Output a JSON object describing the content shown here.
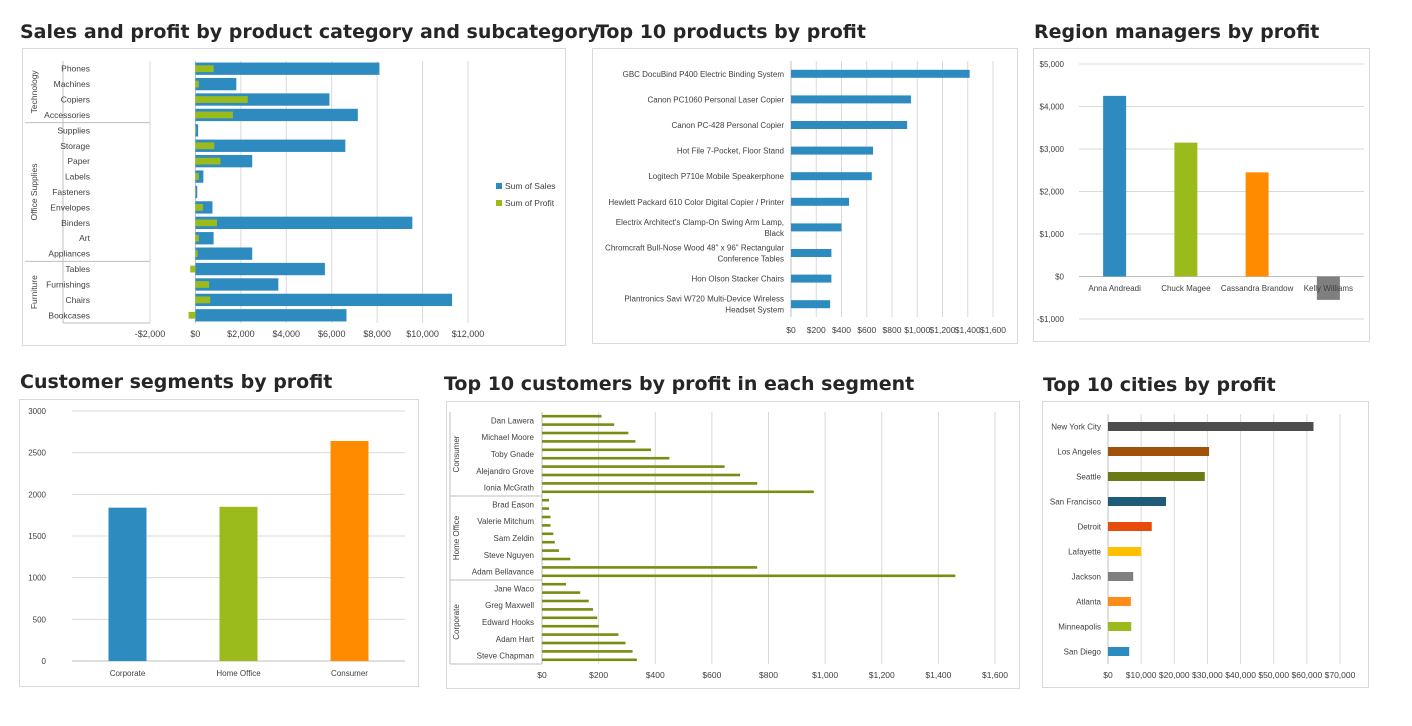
{
  "titles": {
    "sales_profit": "Sales and profit by product category and subcategory",
    "top_products": "Top 10 products by profit",
    "region_managers": "Region managers by profit",
    "segments": "Customer segments by profit",
    "top_customers": "Top 10 customers by profit in each segment",
    "top_cities": "Top 10 cities by profit"
  },
  "chart_data": [
    {
      "id": "sales_profit",
      "type": "bar",
      "orientation": "horizontal",
      "title": "Sales and profit by product category and subcategory",
      "groups": [
        {
          "name": "Technology",
          "categories": [
            "Phones",
            "Machines",
            "Copiers",
            "Accessories"
          ]
        },
        {
          "name": "Office Supplies",
          "categories": [
            "Supplies",
            "Storage",
            "Paper",
            "Labels",
            "Fasteners",
            "Envelopes",
            "Binders",
            "Art",
            "Appliances"
          ]
        },
        {
          "name": "Furniture",
          "categories": [
            "Tables",
            "Furnishings",
            "Chairs",
            "Bookcases"
          ]
        }
      ],
      "series": [
        {
          "name": "Sum of Sales",
          "color": "#2e8bc0",
          "values": [
            8100,
            1800,
            5900,
            7150,
            120,
            6600,
            2500,
            350,
            80,
            750,
            9550,
            800,
            2500,
            5700,
            3650,
            11300,
            6650
          ]
        },
        {
          "name": "Sum of Profit",
          "color": "#9bbb1d",
          "values": [
            800,
            150,
            2300,
            1650,
            30,
            830,
            1100,
            150,
            20,
            330,
            950,
            150,
            100,
            -230,
            600,
            650,
            -300
          ]
        }
      ],
      "ticks": [
        "-$2,000",
        "$0",
        "$2,000",
        "$4,000",
        "$6,000",
        "$8,000",
        "$10,000",
        "$12,000"
      ],
      "xlim": [
        -2000,
        12000
      ],
      "legend": "right",
      "grid": true
    },
    {
      "id": "top_products",
      "type": "bar",
      "orientation": "horizontal",
      "title": "Top 10 products by profit",
      "color": "#2e8bc0",
      "categories": [
        [
          "GBC DocuBind P400 Electric Binding System"
        ],
        [
          "Canon PC1060 Personal Laser Copier"
        ],
        [
          "Canon PC-428 Personal Copier"
        ],
        [
          "Hot File 7-Pocket, Floor Stand"
        ],
        [
          "Logitech P710e Mobile Speakerphone"
        ],
        [
          "Hewlett Packard 610 Color Digital Copier / Printer"
        ],
        [
          "Electrix Architect's Clamp-On Swing Arm Lamp,",
          "Black"
        ],
        [
          "Chromcraft Bull-Nose Wood 48\" x 96\" Rectangular",
          "Conference Tables"
        ],
        [
          "Hon Olson Stacker Chairs"
        ],
        [
          "Plantronics Savi W720 Multi-Device Wireless",
          "Headset System"
        ]
      ],
      "values": [
        1415,
        950,
        920,
        650,
        640,
        460,
        400,
        320,
        320,
        310
      ],
      "ticks": [
        "$0",
        "$200",
        "$400",
        "$600",
        "$800",
        "$1,000",
        "$1,200",
        "$1,400",
        "$1,600"
      ],
      "xlim": [
        0,
        1600
      ],
      "grid": true
    },
    {
      "id": "region_managers",
      "type": "bar",
      "title": "Region managers by profit",
      "categories": [
        "Anna Andreadi",
        "Chuck Magee",
        "Cassandra Brandow",
        "Kelly Williams"
      ],
      "values": [
        4250,
        3150,
        2450,
        -550
      ],
      "colors": [
        "#2e8bc0",
        "#9bbb1d",
        "#ff8c00",
        "#7f7f7f"
      ],
      "ticks": [
        "$5,000",
        "$4,000",
        "$3,000",
        "$2,000",
        "$1,000",
        "$0",
        "-$1,000"
      ],
      "ylim": [
        -1000,
        5000
      ],
      "grid": true
    },
    {
      "id": "segments",
      "type": "bar",
      "title": "Customer segments by profit",
      "categories": [
        "Corporate",
        "Home Office",
        "Consumer"
      ],
      "values": [
        1840,
        1850,
        2640
      ],
      "colors": [
        "#2e8bc0",
        "#9bbb1d",
        "#ff8c00"
      ],
      "ticks": [
        "3000",
        "2500",
        "2000",
        "1500",
        "1000",
        "500",
        "0"
      ],
      "ylim": [
        0,
        3000
      ],
      "grid": true
    },
    {
      "id": "top_customers",
      "type": "bar",
      "orientation": "horizontal",
      "title": "Top 10 customers by profit in each segment",
      "color": "#7a8c12",
      "groups": [
        {
          "name": "Consumer",
          "labels": [
            "Dan Lawera",
            "Michael Moore",
            "Toby Gnade",
            "Alejandro Grove",
            "Ionia McGrath"
          ],
          "values": [
            210,
            255,
            305,
            330,
            385,
            450,
            645,
            700,
            760,
            960
          ]
        },
        {
          "name": "Home Office",
          "labels": [
            "Brad Eason",
            "Valerie Mitchum",
            "Sam Zeldin",
            "Steve Nguyen",
            "Adam Bellavance"
          ],
          "values": [
            25,
            25,
            30,
            30,
            40,
            45,
            60,
            100,
            760,
            1460
          ]
        },
        {
          "name": "Corporate",
          "labels": [
            "Jane Waco",
            "Greg Maxwell",
            "Edward Hooks",
            "Adam Hart",
            "Steve Chapman"
          ],
          "values": [
            85,
            135,
            165,
            180,
            195,
            200,
            270,
            295,
            320,
            335
          ]
        }
      ],
      "ticks": [
        "$0",
        "$200",
        "$400",
        "$600",
        "$800",
        "$1,000",
        "$1,200",
        "$1,400",
        "$1,600"
      ],
      "xlim": [
        0,
        1600
      ],
      "grid": true
    },
    {
      "id": "top_cities",
      "type": "bar",
      "orientation": "horizontal",
      "title": "Top 10 cities by profit",
      "categories": [
        "New York City",
        "Los Angeles",
        "Seattle",
        "San Francisco",
        "Detroit",
        "Lafayette",
        "Jackson",
        "Atlanta",
        "Minneapolis",
        "San Diego"
      ],
      "values": [
        62000,
        30500,
        29200,
        17500,
        13200,
        10000,
        7600,
        6900,
        7000,
        6400
      ],
      "colors": [
        "#4d4d4d",
        "#a0520a",
        "#6b7a14",
        "#1f5a78",
        "#e84c0c",
        "#ffc000",
        "#7f7f7f",
        "#ff8c1a",
        "#9bbb1d",
        "#2e8bc0"
      ],
      "ticks": [
        "$0",
        "$10,000",
        "$20,000",
        "$30,000",
        "$40,000",
        "$50,000",
        "$60,000",
        "$70,000"
      ],
      "xlim": [
        0,
        70000
      ],
      "grid": true
    }
  ]
}
